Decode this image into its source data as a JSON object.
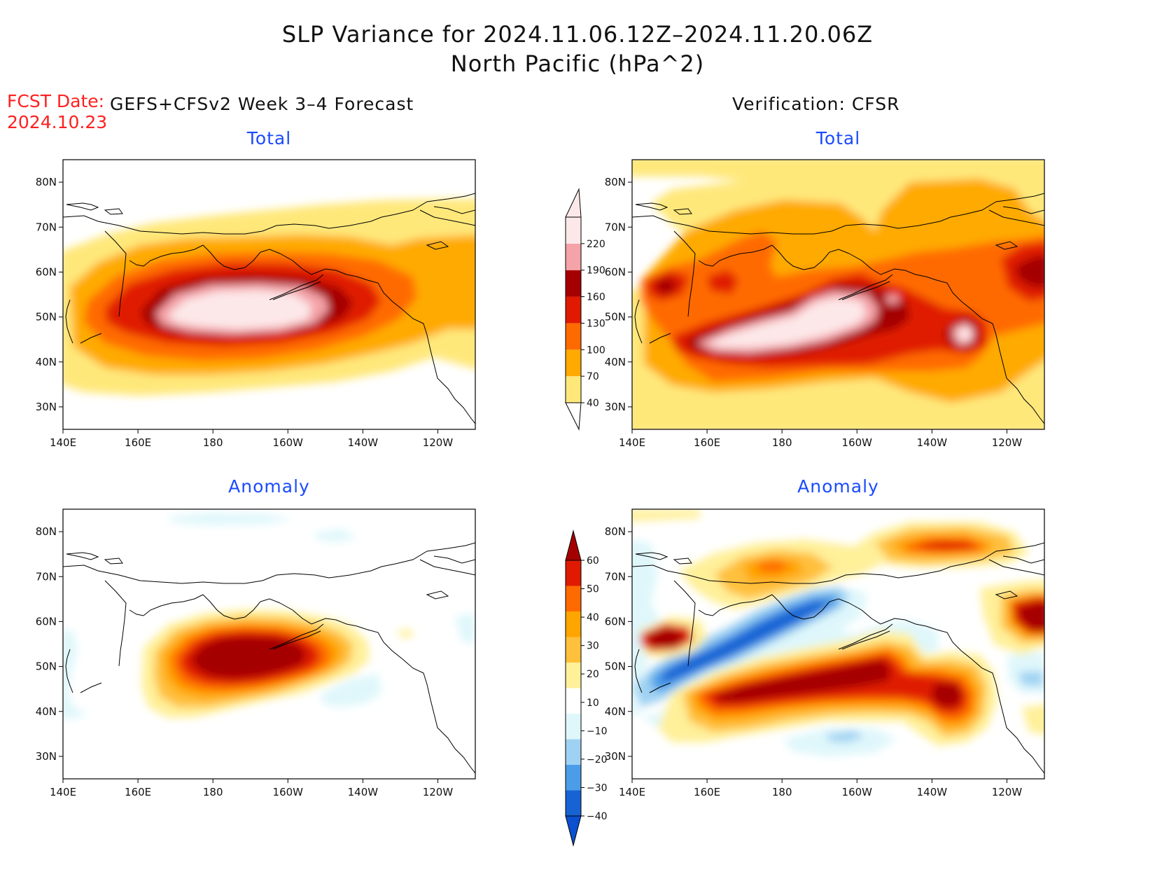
{
  "title_line1": "SLP Variance for 2024.11.06.12Z–2024.11.20.06Z",
  "title_line2": "North Pacific (hPa^2)",
  "fcst_date_label": "FCST Date:",
  "fcst_date_value": "2024.10.23",
  "left_header": "GEFS+CFSv2 Week 3–4 Forecast",
  "right_header": "Verification: CFSR",
  "panel_titles": {
    "top_left": "Total",
    "top_right": "Total",
    "bottom_left": "Anomaly",
    "bottom_right": "Anomaly"
  },
  "map_axes": {
    "lon_ticks": [
      "140E",
      "160E",
      "180",
      "160W",
      "140W",
      "120W"
    ],
    "lat_ticks": [
      "80N",
      "70N",
      "60N",
      "50N",
      "40N",
      "30N"
    ],
    "lon_range_deg_east": [
      140,
      250
    ],
    "lat_range_deg_north": [
      25,
      85
    ]
  },
  "colorbars": {
    "total": {
      "levels": [
        "40",
        "70",
        "100",
        "130",
        "160",
        "190",
        "220"
      ],
      "colors": [
        "#ffe87a",
        "#ffaa00",
        "#ff6a00",
        "#e01a00",
        "#a50000",
        "#f4a3a8",
        "#fde8e9"
      ]
    },
    "anomaly": {
      "levels": [
        "60",
        "50",
        "40",
        "30",
        "20",
        "10",
        "−10",
        "−20",
        "−30",
        "−40"
      ],
      "colors": [
        "#a50000",
        "#e01a00",
        "#ff6a00",
        "#ffa500",
        "#ffc03c",
        "#fff09a",
        "#ffffff",
        "#dff7fb",
        "#9fd2f2",
        "#4c9de8",
        "#1763d4",
        "#0a50d0"
      ]
    }
  },
  "colors": {
    "total_bands": [
      "#ffe87a",
      "#ffaa00",
      "#ff6a00",
      "#e01a00",
      "#a50000",
      "#f4a3a8",
      "#fde8e9"
    ],
    "anom_pos": [
      "#fff09a",
      "#ffc03c",
      "#ffa500",
      "#ff6a00",
      "#e01a00",
      "#a50000"
    ],
    "anom_neg": [
      "#dff7fb",
      "#9fd2f2",
      "#4c9de8",
      "#1763d4"
    ]
  }
}
